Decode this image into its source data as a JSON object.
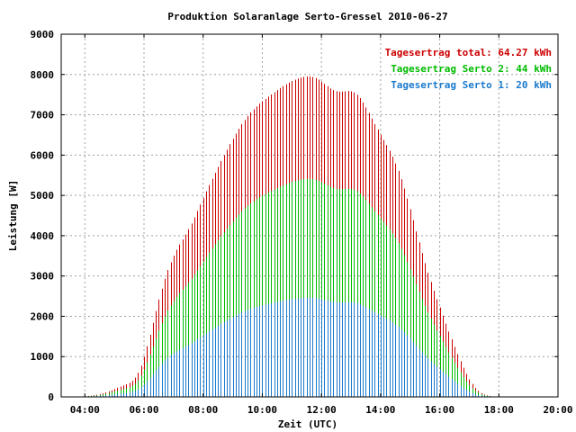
{
  "chart_data": {
    "type": "bar",
    "title": "Produktion Solaranlage Serto-Gressel 2010-06-27",
    "xlabel": "Zeit (UTC)",
    "ylabel": "Leistung [W]",
    "xlim": [
      3.2,
      20.0
    ],
    "ylim": [
      0,
      9000
    ],
    "grid": true,
    "legend_position": "top-right",
    "xticks": [
      {
        "value": 4,
        "label": "04:00"
      },
      {
        "value": 6,
        "label": "06:00"
      },
      {
        "value": 8,
        "label": "08:00"
      },
      {
        "value": 10,
        "label": "10:00"
      },
      {
        "value": 12,
        "label": "12:00"
      },
      {
        "value": 14,
        "label": "14:00"
      },
      {
        "value": 16,
        "label": "16:00"
      },
      {
        "value": 18,
        "label": "18:00"
      },
      {
        "value": 20,
        "label": "20:00"
      }
    ],
    "yticks": [
      {
        "value": 0,
        "label": "0"
      },
      {
        "value": 1000,
        "label": "1000"
      },
      {
        "value": 2000,
        "label": "2000"
      },
      {
        "value": 3000,
        "label": "3000"
      },
      {
        "value": 4000,
        "label": "4000"
      },
      {
        "value": 5000,
        "label": "5000"
      },
      {
        "value": 6000,
        "label": "6000"
      },
      {
        "value": 7000,
        "label": "7000"
      },
      {
        "value": 8000,
        "label": "8000"
      },
      {
        "value": 9000,
        "label": "9000"
      }
    ],
    "x_start": 3.8,
    "x_end": 19.6,
    "x_step": 0.1,
    "series": [
      {
        "name": "total",
        "legend": "Tagesertrag total: 64.27 kWh",
        "color": "#cc0000",
        "values": [
          6,
          11,
          17,
          23,
          31,
          41,
          54,
          70,
          89,
          112,
          138,
          166,
          196,
          226,
          256,
          286,
          316,
          352,
          400,
          477,
          600,
          777,
          1000,
          1259,
          1541,
          1836,
          2131,
          2418,
          2686,
          2930,
          3148,
          3338,
          3504,
          3650,
          3782,
          3906,
          4031,
          4162,
          4303,
          4453,
          4611,
          4774,
          4938,
          5100,
          5258,
          5412,
          5562,
          5709,
          5853,
          5995,
          6134,
          6271,
          6404,
          6532,
          6653,
          6767,
          6873,
          6970,
          7057,
          7137,
          7209,
          7275,
          7336,
          7394,
          7450,
          7505,
          7559,
          7612,
          7664,
          7713,
          7758,
          7800,
          7838,
          7872,
          7901,
          7925,
          7942,
          7950,
          7949,
          7937,
          7911,
          7873,
          7824,
          7767,
          7709,
          7655,
          7612,
          7585,
          7574,
          7575,
          7583,
          7589,
          7581,
          7553,
          7498,
          7415,
          7308,
          7183,
          7046,
          6906,
          6767,
          6634,
          6505,
          6377,
          6247,
          6109,
          5959,
          5793,
          5608,
          5401,
          5171,
          4921,
          4656,
          4382,
          4106,
          3834,
          3570,
          3319,
          3080,
          2853,
          2635,
          2424,
          2219,
          2017,
          1818,
          1622,
          1430,
          1242,
          1060,
          886,
          722,
          571,
          436,
          320,
          224,
          150,
          96,
          60,
          36,
          21,
          12,
          7,
          4,
          2,
          1,
          0,
          0,
          0,
          0,
          0,
          0,
          0,
          0,
          0,
          0,
          0,
          0,
          0,
          0,
          0,
          0,
          0
        ]
      },
      {
        "name": "Serto 2",
        "legend": "Tagesertrag Serto 2: 44 kWh",
        "color": "#00bb00",
        "values": [
          4,
          7,
          11,
          16,
          21,
          28,
          37,
          48,
          61,
          76,
          94,
          113,
          134,
          154,
          175,
          195,
          215,
          240,
          273,
          325,
          408,
          529,
          680,
          857,
          1049,
          1250,
          1450,
          1646,
          1828,
          1994,
          2143,
          2272,
          2385,
          2485,
          2575,
          2659,
          2744,
          2833,
          2929,
          3031,
          3138,
          3250,
          3361,
          3472,
          3579,
          3684,
          3786,
          3886,
          3984,
          4080,
          4175,
          4268,
          4359,
          4446,
          4528,
          4606,
          4678,
          4744,
          4803,
          4858,
          4907,
          4952,
          4993,
          5033,
          5071,
          5108,
          5145,
          5181,
          5216,
          5249,
          5280,
          5309,
          5335,
          5358,
          5377,
          5394,
          5405,
          5411,
          5410,
          5402,
          5385,
          5359,
          5326,
          5287,
          5247,
          5211,
          5181,
          5163,
          5155,
          5156,
          5161,
          5165,
          5160,
          5141,
          5104,
          5047,
          4974,
          4889,
          4796,
          4701,
          4606,
          4515,
          4428,
          4340,
          4252,
          4158,
          4056,
          3943,
          3817,
          3676,
          3520,
          3349,
          3169,
          2983,
          2795,
          2610,
          2430,
          2259,
          2096,
          1942,
          1793,
          1650,
          1510,
          1373,
          1238,
          1104,
          973,
          845,
          721,
          603,
          491,
          389,
          297,
          218,
          152,
          102,
          65,
          41,
          25,
          14,
          8,
          5,
          3,
          1,
          1,
          0,
          0,
          0,
          0,
          0,
          0,
          0,
          0,
          0,
          0,
          0,
          0,
          0,
          0,
          0,
          0,
          0
        ]
      },
      {
        "name": "Serto 1",
        "legend": "Tagesertrag Serto 1: 20 kWh",
        "color": "#1a7acc",
        "values": [
          2,
          3,
          5,
          7,
          10,
          13,
          17,
          22,
          28,
          35,
          43,
          51,
          61,
          70,
          80,
          89,
          98,
          109,
          124,
          148,
          186,
          241,
          309,
          390,
          477,
          569,
          660,
          749,
          832,
          907,
          975,
          1034,
          1085,
          1130,
          1171,
          1210,
          1248,
          1289,
          1333,
          1379,
          1428,
          1478,
          1529,
          1580,
          1628,
          1676,
          1723,
          1768,
          1813,
          1857,
          1900,
          1942,
          1983,
          2023,
          2061,
          2096,
          2129,
          2159,
          2186,
          2211,
          2233,
          2253,
          2272,
          2290,
          2307,
          2324,
          2341,
          2358,
          2373,
          2389,
          2403,
          2416,
          2428,
          2438,
          2447,
          2454,
          2460,
          2462,
          2462,
          2458,
          2450,
          2438,
          2423,
          2406,
          2387,
          2371,
          2357,
          2349,
          2346,
          2346,
          2348,
          2350,
          2348,
          2339,
          2322,
          2296,
          2263,
          2225,
          2182,
          2139,
          2096,
          2054,
          2015,
          1975,
          1935,
          1892,
          1846,
          1794,
          1737,
          1673,
          1601,
          1524,
          1442,
          1357,
          1272,
          1188,
          1106,
          1028,
          954,
          884,
          816,
          751,
          687,
          625,
          563,
          502,
          443,
          385,
          328,
          274,
          224,
          177,
          135,
          99,
          69,
          46,
          30,
          19,
          11,
          7,
          4,
          2,
          1,
          1,
          0,
          0,
          0,
          0,
          0,
          0,
          0,
          0,
          0,
          0,
          0,
          0,
          0,
          0,
          0,
          0,
          0,
          0,
          0
        ]
      }
    ]
  }
}
